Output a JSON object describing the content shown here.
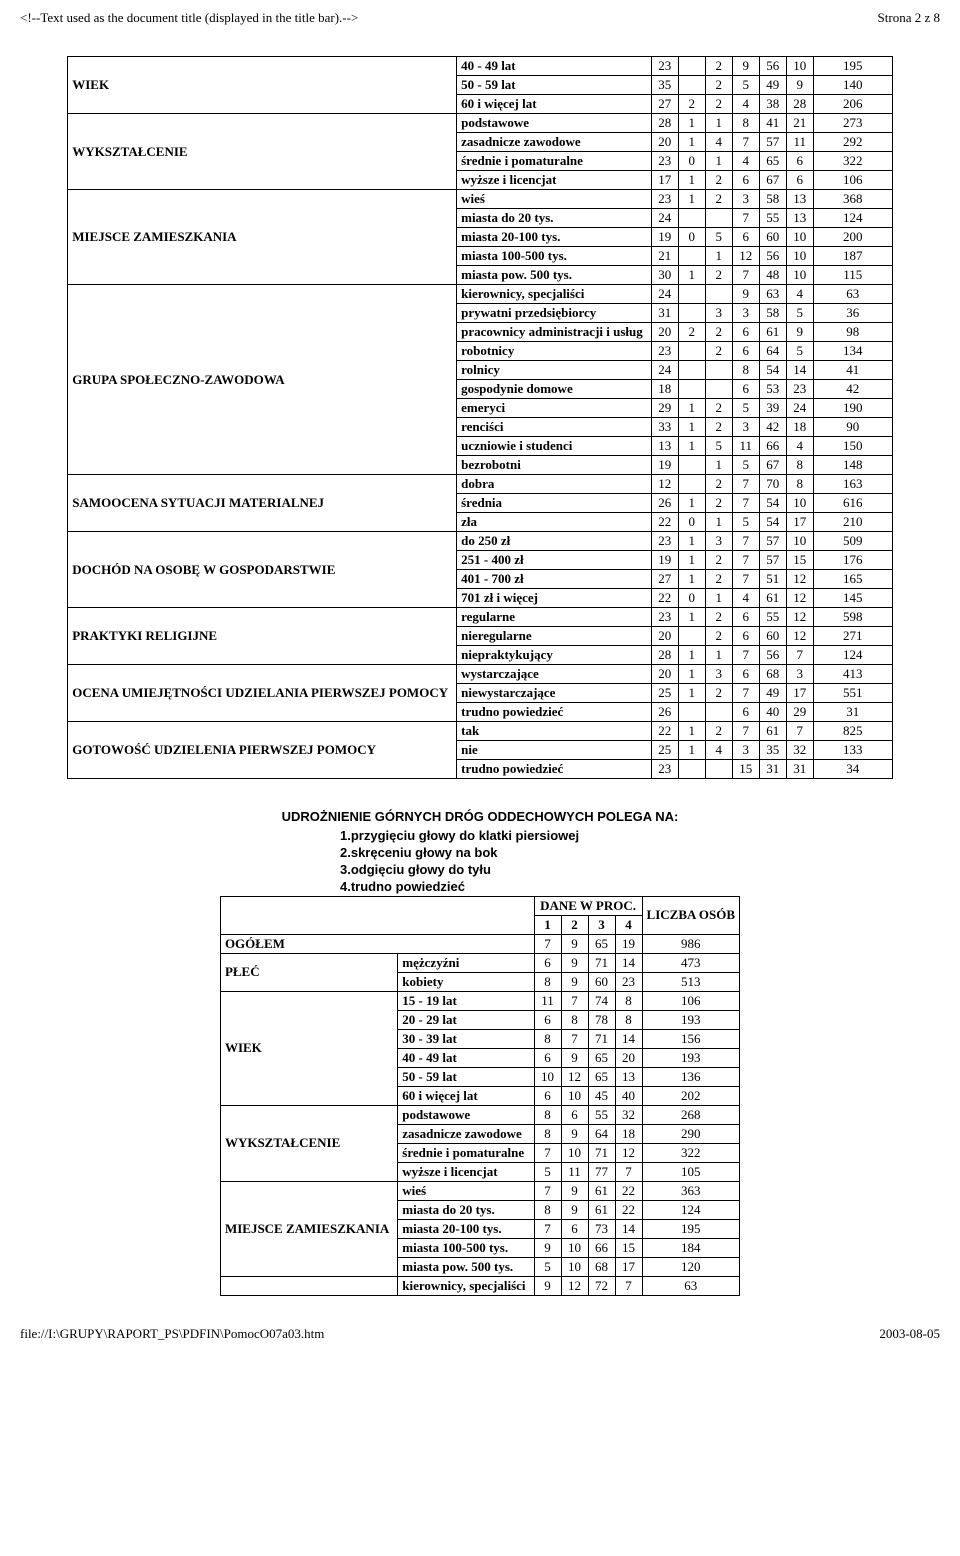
{
  "page_header_left": "<!--Text used as the document title (displayed in the title bar).-->",
  "page_header_right": "Strona 2 z 8",
  "footer_left": "file://I:\\GRUPY\\RAPORT_PS\\PDFIN\\PomocO07a03.htm",
  "footer_right": "2003-08-05",
  "table1_rows": [
    {
      "group": "",
      "label": "40 - 49 lat",
      "v": [
        "23",
        "",
        "2",
        "9",
        "56",
        "10"
      ],
      "count": "195"
    },
    {
      "group": "WIEK",
      "label": "50 - 59 lat",
      "v": [
        "35",
        "",
        "2",
        "5",
        "49",
        "9"
      ],
      "count": "140"
    },
    {
      "group": "",
      "label": "60 i więcej lat",
      "v": [
        "27",
        "2",
        "2",
        "4",
        "38",
        "28"
      ],
      "count": "206"
    },
    {
      "group": "",
      "label": "podstawowe",
      "v": [
        "28",
        "1",
        "1",
        "8",
        "41",
        "21"
      ],
      "count": "273"
    },
    {
      "group": "WYKSZTAŁCENIE",
      "label": "zasadnicze zawodowe",
      "v": [
        "20",
        "1",
        "4",
        "7",
        "57",
        "11"
      ],
      "count": "292"
    },
    {
      "group": "",
      "label": "średnie i pomaturalne",
      "v": [
        "23",
        "0",
        "1",
        "4",
        "65",
        "6"
      ],
      "count": "322"
    },
    {
      "group": "",
      "label": "wyższe i licencjat",
      "v": [
        "17",
        "1",
        "2",
        "6",
        "67",
        "6"
      ],
      "count": "106"
    },
    {
      "group": "",
      "label": "wieś",
      "v": [
        "23",
        "1",
        "2",
        "3",
        "58",
        "13"
      ],
      "count": "368"
    },
    {
      "group": "",
      "label": "miasta do 20 tys.",
      "v": [
        "24",
        "",
        "",
        "7",
        "55",
        "13"
      ],
      "count": "124"
    },
    {
      "group": "MIEJSCE ZAMIESZKANIA",
      "label": "miasta 20-100 tys.",
      "v": [
        "19",
        "0",
        "5",
        "6",
        "60",
        "10"
      ],
      "count": "200"
    },
    {
      "group": "",
      "label": "miasta 100-500 tys.",
      "v": [
        "21",
        "",
        "1",
        "12",
        "56",
        "10"
      ],
      "count": "187"
    },
    {
      "group": "",
      "label": "miasta pow. 500 tys.",
      "v": [
        "30",
        "1",
        "2",
        "7",
        "48",
        "10"
      ],
      "count": "115"
    },
    {
      "group": "",
      "label": "kierownicy, specjaliści",
      "v": [
        "24",
        "",
        "",
        "9",
        "63",
        "4"
      ],
      "count": "63"
    },
    {
      "group": "",
      "label": "prywatni przedsiębiorcy",
      "v": [
        "31",
        "",
        "3",
        "3",
        "58",
        "5"
      ],
      "count": "36"
    },
    {
      "group": "",
      "label": "pracownicy administracji i usług",
      "v": [
        "20",
        "2",
        "2",
        "6",
        "61",
        "9"
      ],
      "count": "98"
    },
    {
      "group": "",
      "label": "robotnicy",
      "v": [
        "23",
        "",
        "2",
        "6",
        "64",
        "5"
      ],
      "count": "134"
    },
    {
      "group": "GRUPA SPOŁECZNO-ZAWODOWA",
      "label": "rolnicy",
      "v": [
        "24",
        "",
        "",
        "8",
        "54",
        "14"
      ],
      "count": "41"
    },
    {
      "group": "",
      "label": "gospodynie domowe",
      "v": [
        "18",
        "",
        "",
        "6",
        "53",
        "23"
      ],
      "count": "42"
    },
    {
      "group": "",
      "label": "emeryci",
      "v": [
        "29",
        "1",
        "2",
        "5",
        "39",
        "24"
      ],
      "count": "190"
    },
    {
      "group": "",
      "label": "renciści",
      "v": [
        "33",
        "1",
        "2",
        "3",
        "42",
        "18"
      ],
      "count": "90"
    },
    {
      "group": "",
      "label": "uczniowie i studenci",
      "v": [
        "13",
        "1",
        "5",
        "11",
        "66",
        "4"
      ],
      "count": "150"
    },
    {
      "group": "",
      "label": "bezrobotni",
      "v": [
        "19",
        "",
        "1",
        "5",
        "67",
        "8"
      ],
      "count": "148"
    },
    {
      "group": "",
      "label": "dobra",
      "v": [
        "12",
        "",
        "2",
        "7",
        "70",
        "8"
      ],
      "count": "163"
    },
    {
      "group": "SAMOOCENA SYTUACJI MATERIALNEJ",
      "label": "średnia",
      "v": [
        "26",
        "1",
        "2",
        "7",
        "54",
        "10"
      ],
      "count": "616"
    },
    {
      "group": "",
      "label": "zła",
      "v": [
        "22",
        "0",
        "1",
        "5",
        "54",
        "17"
      ],
      "count": "210"
    },
    {
      "group": "",
      "label": "do 250 zł",
      "v": [
        "23",
        "1",
        "3",
        "7",
        "57",
        "10"
      ],
      "count": "509"
    },
    {
      "group": "DOCHÓD NA OSOBĘ W GOSPODARSTWIE",
      "label": "251 - 400 zł",
      "v": [
        "19",
        "1",
        "2",
        "7",
        "57",
        "15"
      ],
      "count": "176"
    },
    {
      "group": "",
      "label": "401 - 700 zł",
      "v": [
        "27",
        "1",
        "2",
        "7",
        "51",
        "12"
      ],
      "count": "165"
    },
    {
      "group": "",
      "label": "701 zł i więcej",
      "v": [
        "22",
        "0",
        "1",
        "4",
        "61",
        "12"
      ],
      "count": "145"
    },
    {
      "group": "",
      "label": "regularne",
      "v": [
        "23",
        "1",
        "2",
        "6",
        "55",
        "12"
      ],
      "count": "598"
    },
    {
      "group": "PRAKTYKI RELIGIJNE",
      "label": "nieregularne",
      "v": [
        "20",
        "",
        "2",
        "6",
        "60",
        "12"
      ],
      "count": "271"
    },
    {
      "group": "",
      "label": "niepraktykujący",
      "v": [
        "28",
        "1",
        "1",
        "7",
        "56",
        "7"
      ],
      "count": "124"
    },
    {
      "group": "",
      "label": "wystarczające",
      "v": [
        "20",
        "1",
        "3",
        "6",
        "68",
        "3"
      ],
      "count": "413"
    },
    {
      "group": "OCENA UMIEJĘTNOŚCI UDZIELANIA PIERWSZEJ POMOCY",
      "label": "niewystarczające",
      "v": [
        "25",
        "1",
        "2",
        "7",
        "49",
        "17"
      ],
      "count": "551"
    },
    {
      "group": "",
      "label": "trudno powiedzieć",
      "v": [
        "26",
        "",
        "",
        "6",
        "40",
        "29"
      ],
      "count": "31"
    },
    {
      "group": "",
      "label": "tak",
      "v": [
        "22",
        "1",
        "2",
        "7",
        "61",
        "7"
      ],
      "count": "825"
    },
    {
      "group": "GOTOWOŚĆ UDZIELENIA PIERWSZEJ POMOCY",
      "label": "nie",
      "v": [
        "25",
        "1",
        "4",
        "3",
        "35",
        "32"
      ],
      "count": "133"
    },
    {
      "group": "",
      "label": "trudno powiedzieć",
      "v": [
        "23",
        "",
        "",
        "15",
        "31",
        "31"
      ],
      "count": "34"
    }
  ],
  "table1_groups": [
    {
      "name": "WIEK",
      "start": 0,
      "span": 3
    },
    {
      "name": "WYKSZTAŁCENIE",
      "start": 3,
      "span": 4
    },
    {
      "name": "MIEJSCE ZAMIESZKANIA",
      "start": 7,
      "span": 5
    },
    {
      "name": "GRUPA SPOŁECZNO-ZAWODOWA",
      "start": 12,
      "span": 10
    },
    {
      "name": "SAMOOCENA SYTUACJI MATERIALNEJ",
      "start": 22,
      "span": 3
    },
    {
      "name": "DOCHÓD NA OSOBĘ W GOSPODARSTWIE",
      "start": 25,
      "span": 4
    },
    {
      "name": "PRAKTYKI RELIGIJNE",
      "start": 29,
      "span": 3
    },
    {
      "name": "OCENA UMIEJĘTNOŚCI UDZIELANIA PIERWSZEJ POMOCY",
      "start": 32,
      "span": 3
    },
    {
      "name": "GOTOWOŚĆ UDZIELENIA PIERWSZEJ POMOCY",
      "start": 35,
      "span": 3
    }
  ],
  "section2_title": "UDROŻNIENIE GÓRNYCH DRÓG ODDECHOWYCH POLEGA NA:",
  "section2_options": [
    "1.przygięciu głowy do klatki piersiowej",
    "2.skręceniu głowy na bok",
    "3.odgięciu głowy do tyłu",
    "4.trudno powiedzieć"
  ],
  "table2_header_top": "DANE W PROC.",
  "table2_header_right": "LICZBA OSÓB",
  "table2_cols": [
    "1",
    "2",
    "3",
    "4"
  ],
  "table2_rows": [
    {
      "group": "",
      "span": 1,
      "label": "OGÓŁEM",
      "v": [
        "7",
        "9",
        "65",
        "19"
      ],
      "count": "986",
      "fullrow": true
    },
    {
      "group": "PŁEĆ",
      "span": 2,
      "label": "mężczyźni",
      "v": [
        "6",
        "9",
        "71",
        "14"
      ],
      "count": "473"
    },
    {
      "group": "",
      "label": "kobiety",
      "v": [
        "8",
        "9",
        "60",
        "23"
      ],
      "count": "513"
    },
    {
      "group": "WIEK",
      "span": 6,
      "label": "15 - 19 lat",
      "v": [
        "11",
        "7",
        "74",
        "8"
      ],
      "count": "106"
    },
    {
      "group": "",
      "label": "20 - 29 lat",
      "v": [
        "6",
        "8",
        "78",
        "8"
      ],
      "count": "193"
    },
    {
      "group": "",
      "label": "30 - 39 lat",
      "v": [
        "8",
        "7",
        "71",
        "14"
      ],
      "count": "156"
    },
    {
      "group": "",
      "label": "40 - 49 lat",
      "v": [
        "6",
        "9",
        "65",
        "20"
      ],
      "count": "193"
    },
    {
      "group": "",
      "label": "50 - 59 lat",
      "v": [
        "10",
        "12",
        "65",
        "13"
      ],
      "count": "136"
    },
    {
      "group": "",
      "label": "60 i więcej lat",
      "v": [
        "6",
        "10",
        "45",
        "40"
      ],
      "count": "202"
    },
    {
      "group": "WYKSZTAŁCENIE",
      "span": 4,
      "label": "podstawowe",
      "v": [
        "8",
        "6",
        "55",
        "32"
      ],
      "count": "268"
    },
    {
      "group": "",
      "label": "zasadnicze zawodowe",
      "v": [
        "8",
        "9",
        "64",
        "18"
      ],
      "count": "290"
    },
    {
      "group": "",
      "label": "średnie i pomaturalne",
      "v": [
        "7",
        "10",
        "71",
        "12"
      ],
      "count": "322"
    },
    {
      "group": "",
      "label": "wyższe i licencjat",
      "v": [
        "5",
        "11",
        "77",
        "7"
      ],
      "count": "105"
    },
    {
      "group": "MIEJSCE ZAMIESZKANIA",
      "span": 5,
      "label": "wieś",
      "v": [
        "7",
        "9",
        "61",
        "22"
      ],
      "count": "363"
    },
    {
      "group": "",
      "label": "miasta do 20 tys.",
      "v": [
        "8",
        "9",
        "61",
        "22"
      ],
      "count": "124"
    },
    {
      "group": "",
      "label": "miasta 20-100 tys.",
      "v": [
        "7",
        "6",
        "73",
        "14"
      ],
      "count": "195"
    },
    {
      "group": "",
      "label": "miasta 100-500 tys.",
      "v": [
        "9",
        "10",
        "66",
        "15"
      ],
      "count": "184"
    },
    {
      "group": "",
      "label": "miasta pow. 500 tys.",
      "v": [
        "5",
        "10",
        "68",
        "17"
      ],
      "count": "120"
    },
    {
      "group": "",
      "span": 1,
      "label": "kierownicy, specjaliści",
      "v": [
        "9",
        "12",
        "72",
        "7"
      ],
      "count": "63"
    }
  ],
  "table2_groups": [
    {
      "name": "PŁEĆ",
      "start": 1,
      "span": 2
    },
    {
      "name": "WIEK",
      "start": 3,
      "span": 6
    },
    {
      "name": "WYKSZTAŁCENIE",
      "start": 9,
      "span": 4
    },
    {
      "name": "MIEJSCE ZAMIESZKANIA",
      "start": 13,
      "span": 5
    }
  ]
}
